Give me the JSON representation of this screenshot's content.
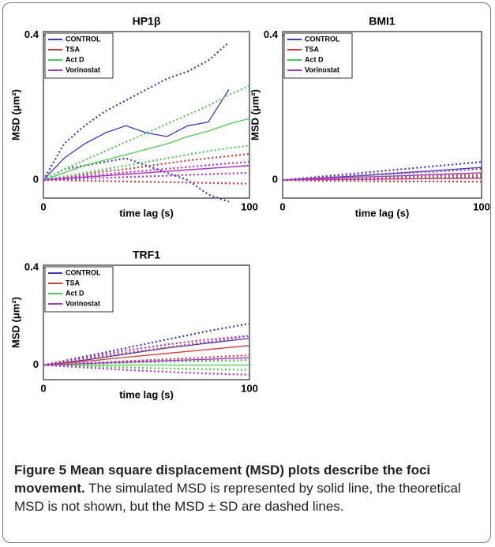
{
  "chart_data": [
    {
      "type": "line",
      "title": "HP1β",
      "xlabel": "time lag (s)",
      "ylabel": "MSD (μm²)",
      "x": [
        0,
        10,
        20,
        30,
        40,
        50,
        60,
        70,
        80,
        90,
        100
      ],
      "xlim": [
        0,
        100
      ],
      "xticks": [
        0,
        100
      ],
      "ylim": [
        -0.05,
        0.41
      ],
      "yticks": [
        0,
        0.4
      ],
      "series": [
        {
          "name": "CONTROL",
          "color": "#3a3ac8",
          "values": [
            0,
            0.06,
            0.1,
            0.13,
            0.15,
            0.13,
            0.12,
            0.15,
            0.16,
            0.25,
            null
          ],
          "upper": [
            0,
            0.1,
            0.15,
            0.19,
            0.22,
            0.25,
            0.28,
            0.3,
            0.33,
            0.38,
            null
          ],
          "lower": [
            0,
            0.03,
            0.04,
            0.05,
            0.06,
            0.04,
            0.02,
            0.0,
            -0.04,
            -0.06,
            null
          ]
        },
        {
          "name": "TSA",
          "color": "#d43a3a",
          "values": [
            0,
            0.004,
            0.008,
            0.012,
            0.016,
            0.02,
            0.024,
            0.028,
            0.032,
            0.036,
            0.04
          ],
          "upper": [
            0,
            0.008,
            0.016,
            0.024,
            0.03,
            0.038,
            0.046,
            0.054,
            0.06,
            0.066,
            0.072
          ],
          "lower": [
            0,
            0,
            -0.002,
            -0.003,
            -0.004,
            -0.005,
            -0.006,
            -0.007,
            -0.008,
            -0.009,
            -0.01
          ]
        },
        {
          "name": "Act D",
          "color": "#4ccc4c",
          "values": [
            0,
            0.02,
            0.04,
            0.055,
            0.07,
            0.085,
            0.1,
            0.12,
            0.135,
            0.155,
            0.17
          ],
          "upper": [
            0,
            0.03,
            0.055,
            0.08,
            0.105,
            0.13,
            0.155,
            0.18,
            0.205,
            0.235,
            0.26
          ],
          "lower": [
            0,
            0.01,
            0.02,
            0.03,
            0.04,
            0.05,
            0.06,
            0.07,
            0.08,
            0.088,
            0.095
          ]
        },
        {
          "name": "Vorinostat",
          "color": "#b030d0",
          "values": [
            0,
            0.004,
            0.008,
            0.012,
            0.016,
            0.02,
            0.024,
            0.028,
            0.032,
            0.036,
            0.04
          ],
          "upper": [
            0,
            0.006,
            0.011,
            0.016,
            0.021,
            0.026,
            0.031,
            0.036,
            0.041,
            0.046,
            0.05
          ],
          "lower": [
            0,
            0.002,
            0.004,
            0.006,
            0.008,
            0.01,
            0.012,
            0.014,
            0.016,
            0.018,
            0.02
          ]
        }
      ]
    },
    {
      "type": "line",
      "title": "BMI1",
      "xlabel": "time lag (s)",
      "ylabel": "MSD (μm²)",
      "x": [
        0,
        20,
        40,
        60,
        80,
        100
      ],
      "xlim": [
        0,
        100
      ],
      "xticks": [
        0,
        100
      ],
      "ylim": [
        -0.05,
        0.41
      ],
      "yticks": [
        0,
        0.4
      ],
      "series": [
        {
          "name": "CONTROL",
          "color": "#3a3ac8",
          "values": [
            0,
            0.006,
            0.012,
            0.02,
            0.027,
            0.035
          ],
          "upper": [
            0,
            0.01,
            0.02,
            0.03,
            0.04,
            0.05
          ],
          "lower": [
            0,
            0.002,
            0.004,
            0.006,
            0.008,
            0.01
          ]
        },
        {
          "name": "TSA",
          "color": "#d43a3a",
          "values": [
            0,
            0.001,
            0.002,
            0.003,
            0.004,
            0.005
          ],
          "upper": [
            0,
            0.003,
            0.006,
            0.009,
            0.012,
            0.015
          ],
          "lower": [
            0,
            -0.002,
            -0.003,
            -0.004,
            -0.004,
            -0.005
          ]
        },
        {
          "name": "Act D",
          "color": "#4ccc4c",
          "values": [
            0,
            0.004,
            0.008,
            0.012,
            0.016,
            0.02
          ],
          "upper": [
            0,
            0.006,
            0.012,
            0.018,
            0.024,
            0.03
          ],
          "lower": [
            0,
            0.002,
            0.004,
            0.006,
            0.008,
            0.01
          ]
        },
        {
          "name": "Vorinostat",
          "color": "#b030d0",
          "values": [
            0,
            0.004,
            0.008,
            0.012,
            0.016,
            0.02
          ],
          "upper": [
            0,
            0.007,
            0.014,
            0.02,
            0.026,
            0.032
          ],
          "lower": [
            0,
            0.001,
            0.002,
            0.004,
            0.006,
            0.008
          ]
        }
      ]
    },
    {
      "type": "line",
      "title": "TRF1",
      "xlabel": "time lag (s)",
      "ylabel": "MSD (μm²)",
      "x": [
        0,
        20,
        40,
        60,
        80,
        100
      ],
      "xlim": [
        0,
        100
      ],
      "xticks": [
        0,
        100
      ],
      "ylim": [
        -0.06,
        0.41
      ],
      "yticks": [
        0,
        0.4
      ],
      "series": [
        {
          "name": "CONTROL",
          "color": "#3a3ac8",
          "values": [
            0,
            0.02,
            0.045,
            0.07,
            0.09,
            0.11
          ],
          "upper": [
            0,
            0.035,
            0.07,
            0.105,
            0.14,
            0.17
          ],
          "lower": [
            0,
            0.005,
            0.01,
            0.014,
            0.018,
            0.02
          ]
        },
        {
          "name": "TSA",
          "color": "#d43a3a",
          "values": [
            0,
            0.015,
            0.032,
            0.048,
            0.064,
            0.08
          ],
          "upper": [
            0,
            0.025,
            0.05,
            0.072,
            0.095,
            0.12
          ],
          "lower": [
            0,
            0.008,
            0.016,
            0.024,
            0.032,
            0.04
          ]
        },
        {
          "name": "Act D",
          "color": "#4ccc4c",
          "values": [
            0,
            0,
            0,
            0,
            0,
            0
          ],
          "upper": [
            0,
            0.005,
            0.01,
            0.014,
            0.017,
            0.02
          ],
          "lower": [
            0,
            -0.005,
            -0.01,
            -0.014,
            -0.017,
            -0.02
          ]
        },
        {
          "name": "Vorinostat",
          "color": "#b030d0",
          "values": [
            0,
            0.006,
            0.012,
            0.018,
            0.024,
            0.03
          ],
          "upper": [
            0,
            0.03,
            0.06,
            0.085,
            0.105,
            0.12
          ],
          "lower": [
            0,
            -0.01,
            -0.02,
            -0.028,
            -0.035,
            -0.04
          ]
        }
      ]
    }
  ],
  "caption": {
    "label": "Figure 5",
    "title": "Mean square displacement (MSD) plots describe the foci movement.",
    "text": "The simulated MSD is represented by solid line, the theoretical MSD is not shown, but the MSD ± SD are dashed lines."
  }
}
